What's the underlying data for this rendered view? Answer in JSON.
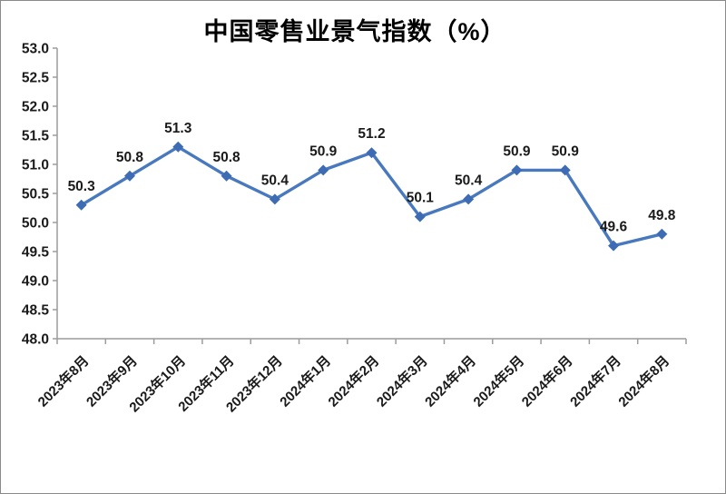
{
  "chart_data": {
    "type": "line",
    "title": "中国零售业景气指数（%）",
    "categories": [
      "2023年8月",
      "2023年9月",
      "2023年10月",
      "2023年11月",
      "2023年12月",
      "2024年1月",
      "2024年2月",
      "2024年3月",
      "2024年4月",
      "2024年5月",
      "2024年6月",
      "2024年7月",
      "2024年8月"
    ],
    "values": [
      50.3,
      50.8,
      51.3,
      50.8,
      50.4,
      50.9,
      51.2,
      50.1,
      50.4,
      50.9,
      50.9,
      49.6,
      49.8
    ],
    "data_labels": [
      "50.3",
      "50.8",
      "51.3",
      "50.8",
      "50.4",
      "50.9",
      "51.2",
      "50.1",
      "50.4",
      "50.9",
      "50.9",
      "49.6",
      "49.8"
    ],
    "y_ticks": [
      "53.0",
      "52.5",
      "52.0",
      "51.5",
      "51.0",
      "50.5",
      "50.0",
      "49.5",
      "49.0",
      "48.5",
      "48.0"
    ],
    "ylim": [
      48.0,
      53.0
    ],
    "y_step": 0.5,
    "xlabel": "",
    "ylabel": "",
    "grid": "off",
    "legend": "none",
    "x_label_rotation_deg": -45,
    "colors": {
      "line": "#4878BE",
      "marker": "#3D6CB4",
      "axis": "#9C9C9C",
      "tick_label": "#1A1A1A",
      "data_label": "#1A1A1A",
      "title": "#000000",
      "frame_border": "#8A8A8A",
      "background": "#FFFFFF"
    }
  }
}
